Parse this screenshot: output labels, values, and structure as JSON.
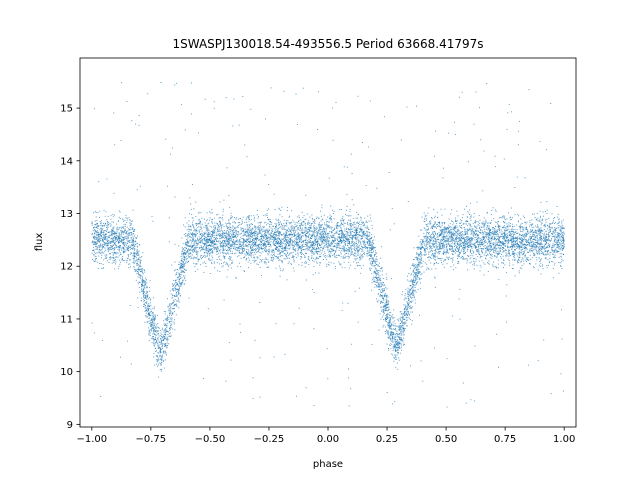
{
  "chart_data": {
    "type": "scatter",
    "title": "1SWASPJ130018.54-493556.5 Period 63668.41797s",
    "xlabel": "phase",
    "ylabel": "flux",
    "xlim": [
      -1.05,
      1.05
    ],
    "ylim": [
      8.95,
      15.95
    ],
    "x_ticks": [
      -1.0,
      -0.75,
      -0.5,
      -0.25,
      0.0,
      0.25,
      0.5,
      0.75,
      1.0
    ],
    "x_tick_labels": [
      "−1.00",
      "−0.75",
      "−0.50",
      "−0.25",
      "0.00",
      "0.25",
      "0.50",
      "0.75",
      "1.00"
    ],
    "y_ticks": [
      9,
      10,
      11,
      12,
      13,
      14,
      15
    ],
    "y_tick_labels": [
      "9",
      "10",
      "11",
      "12",
      "13",
      "14",
      "15"
    ],
    "grid": false,
    "marker_color": "#1f77b4",
    "light_curve": {
      "baseline_flux": 12.5,
      "baseline_scatter": 0.22,
      "eclipses": [
        {
          "phase": -0.71,
          "min_flux": 10.3,
          "half_width": 0.12
        },
        {
          "phase": 0.29,
          "min_flux": 10.45,
          "half_width": 0.12
        }
      ],
      "phase_range": [
        -1.0,
        1.0
      ],
      "outlier_range": [
        9.3,
        15.6
      ]
    }
  }
}
